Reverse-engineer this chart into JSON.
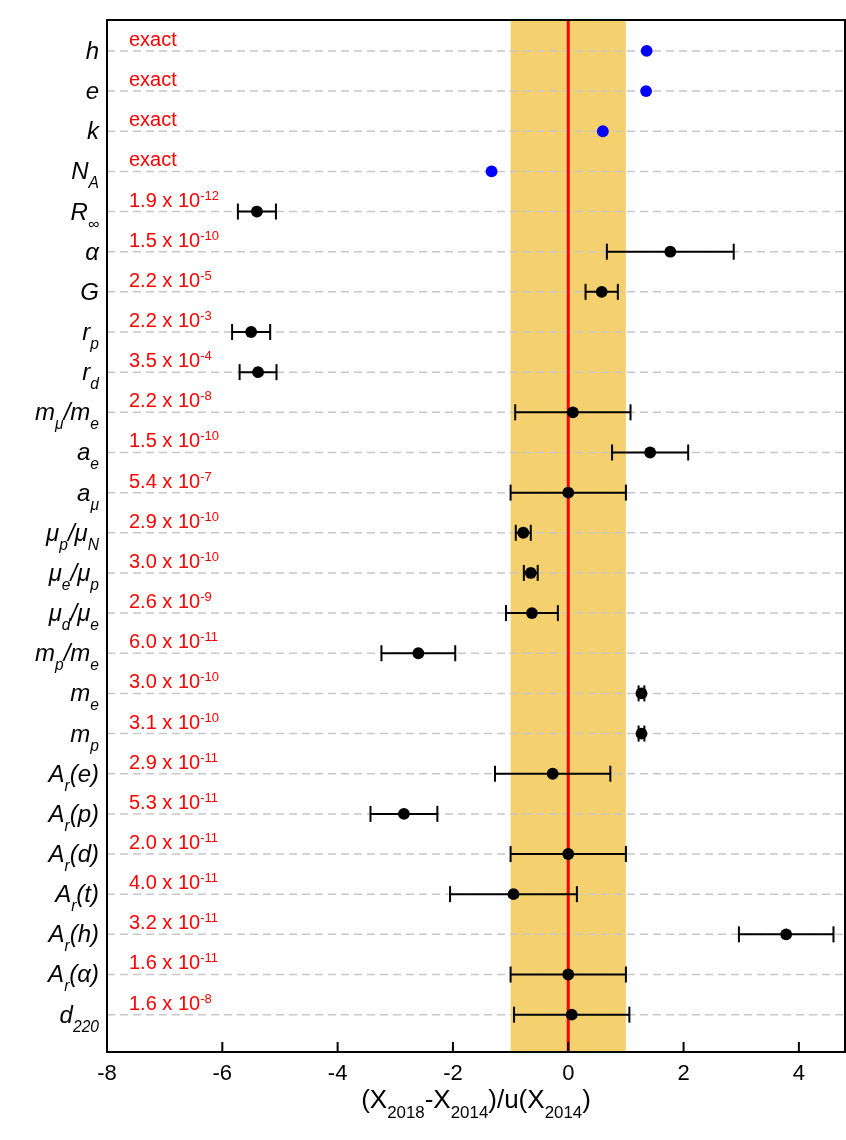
{
  "chart_data": {
    "type": "scatter",
    "orientation": "horizontal",
    "xlabel": "(X$_{2018}$-X$_{2014}$)/u(X$_{2014}$)",
    "categories": [
      "h",
      "e",
      "k",
      "N$_{A}$",
      "R$_{∞}$",
      "α",
      "G",
      "r$_{p}$",
      "r$_{d}$",
      "m$_{μ}$/m$_{e}$",
      "a$_{e}$",
      "a$_{μ}$",
      "μ$_{p}$/μ$_{N}$",
      "μ$_{e}$/μ$_{p}$",
      "μ$_{d}$/μ$_{e}$",
      "m$_{p}$/m$_{e}$",
      "m$_{e}$",
      "m$_{p}$",
      "A$_{r}$(e)",
      "A$_{r}$(p)",
      "A$_{r}$(d)",
      "A$_{r}$(t)",
      "A$_{r}$(h)",
      "A$_{r}$(α)",
      "d$_{220}$"
    ],
    "series": [
      {
        "color": "#0000ff",
        "values": [
          1.36,
          1.35,
          0.6,
          -1.33,
          null,
          null,
          null,
          null,
          null,
          null,
          null,
          null,
          null,
          null,
          null,
          null,
          null,
          null,
          null,
          null,
          null,
          null,
          null,
          null,
          null
        ]
      },
      {
        "color": "#000000",
        "values": [
          null,
          null,
          null,
          null,
          -5.4,
          1.77,
          0.58,
          -5.5,
          -5.38,
          0.08,
          1.42,
          0,
          -0.78,
          -0.65,
          -0.63,
          -2.6,
          1.27,
          1.27,
          -0.27,
          -2.85,
          0,
          -0.95,
          3.78,
          0,
          0.06
        ],
        "errors": [
          null,
          null,
          null,
          null,
          0.33,
          1.1,
          0.28,
          0.33,
          0.32,
          1.0,
          0.66,
          1.0,
          0.13,
          0.12,
          0.45,
          0.64,
          0.05,
          0.05,
          1.0,
          0.58,
          1.0,
          1.1,
          0.82,
          1.0,
          1.0
        ]
      }
    ],
    "xlim": [
      -8,
      4.8
    ],
    "xticks": [
      -8,
      -6,
      -4,
      -2,
      0,
      2,
      4
    ],
    "ref_lines": [
      {
        "axis": "x",
        "value": 0,
        "color": "#ff0000"
      }
    ],
    "bands": [
      {
        "axis": "x",
        "from": -1,
        "to": 1,
        "color": "#f5d06e"
      }
    ],
    "grid": "y",
    "marker": "circle",
    "annotations": [
      "exact",
      "exact",
      "exact",
      "exact",
      "1.9 x 10$^{-12}$",
      "1.5 x 10$^{-10}$",
      "2.2 x 10$^{-5}$",
      "2.2 x 10$^{-3}$",
      "3.5 x 10$^{-4}$",
      "2.2 x 10$^{-8}$",
      "1.5 x 10$^{-10}$",
      "5.4 x 10$^{-7}$",
      "2.9 x 10$^{-10}$",
      "3.0 x 10$^{-10}$",
      "2.6 x 10$^{-9}$",
      "6.0 x 10$^{-11}$",
      "3.0 x 10$^{-10}$",
      "3.1 x 10$^{-10}$",
      "2.9 x 10$^{-11}$",
      "5.3 x 10$^{-11}$",
      "2.0 x 10$^{-11}$",
      "4.0 x 10$^{-11}$",
      "3.2 x 10$^{-11}$",
      "1.6 x 10$^{-11}$",
      "1.6 x 10$^{-8}$"
    ]
  }
}
